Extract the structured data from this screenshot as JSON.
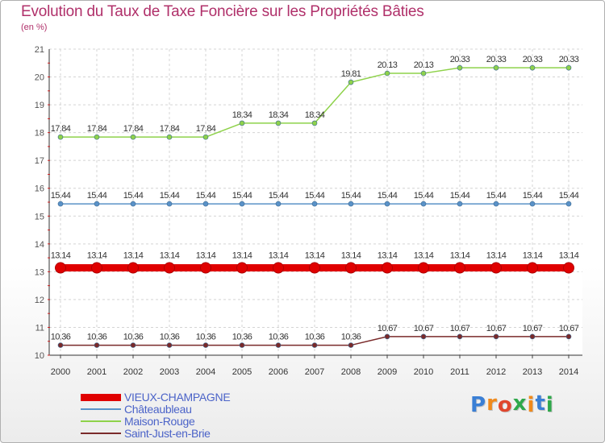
{
  "header": {
    "title": "Evolution du Taux de Taxe Foncière sur les Propriétés Bâties",
    "unit": "(en %)"
  },
  "brand": {
    "text": "Proxiti",
    "colors": [
      "#3a7fd5",
      "#f08a1c",
      "#e0462d",
      "#2ea84a",
      "#f08a1c",
      "#3a7fd5",
      "#2ea84a"
    ]
  },
  "chart_data": {
    "type": "line",
    "title": "Evolution du Taux de Taxe Foncière sur les Propriétés Bâties",
    "xlabel": "",
    "ylabel": "(en %)",
    "ylim": [
      10,
      21
    ],
    "yticks": [
      10,
      11,
      12,
      13,
      14,
      15,
      16,
      17,
      18,
      19,
      20,
      21
    ],
    "grid": true,
    "legend_position": "bottom-left",
    "categories": [
      "2000",
      "2001",
      "2002",
      "2003",
      "2004",
      "2005",
      "2006",
      "2007",
      "2008",
      "2009",
      "2010",
      "2011",
      "2012",
      "2013",
      "2014"
    ],
    "series": [
      {
        "name": "VIEUX-CHAMPAGNE",
        "color": "#e00000",
        "emphasis": "thick",
        "values": [
          13.14,
          13.14,
          13.14,
          13.14,
          13.14,
          13.14,
          13.14,
          13.14,
          13.14,
          13.14,
          13.14,
          13.14,
          13.14,
          13.14,
          13.14
        ],
        "labels": [
          "13.14",
          "13.14",
          "13.14",
          "13.14",
          "13.14",
          "13.14",
          "13.14",
          "13.14",
          "13.14",
          "13.14",
          "13.14",
          "13.14",
          "13.14",
          "13.14",
          "13.14"
        ]
      },
      {
        "name": "Châteaubleau",
        "color": "#5a92c8",
        "emphasis": "thin",
        "values": [
          15.44,
          15.44,
          15.44,
          15.44,
          15.44,
          15.44,
          15.44,
          15.44,
          15.44,
          15.44,
          15.44,
          15.44,
          15.44,
          15.44,
          15.44
        ],
        "labels": [
          "15.44",
          "15.44",
          "15.44",
          "15.44",
          "15.44",
          "15.44",
          "15.44",
          "15.44",
          "15.44",
          "15.44",
          "15.44",
          "15.44",
          "15.44",
          "15.44",
          "15.44"
        ]
      },
      {
        "name": "Maison-Rouge",
        "color": "#8ed24a",
        "emphasis": "thin",
        "values": [
          17.84,
          17.84,
          17.84,
          17.84,
          17.84,
          18.34,
          18.34,
          18.34,
          19.81,
          20.13,
          20.13,
          20.33,
          20.33,
          20.33,
          20.33
        ],
        "labels": [
          "17.84",
          "17.84",
          "17.84",
          "17.84",
          "17.84",
          "18.34",
          "18.34",
          "18.34",
          "19.81",
          "20.13",
          "20.13",
          "20.33",
          "20.33",
          "20.33",
          "20.33"
        ]
      },
      {
        "name": "Saint-Just-en-Brie",
        "color": "#7a2a2a",
        "emphasis": "thin",
        "values": [
          10.36,
          10.36,
          10.36,
          10.36,
          10.36,
          10.36,
          10.36,
          10.36,
          10.36,
          10.67,
          10.67,
          10.67,
          10.67,
          10.67,
          10.67
        ],
        "labels": [
          "10.36",
          "10.36",
          "10.36",
          "10.36",
          "10.36",
          "10.36",
          "10.36",
          "10.36",
          "10.36",
          "10.67",
          "10.67",
          "10.67",
          "10.67",
          "10.67",
          "10.67"
        ]
      }
    ]
  }
}
